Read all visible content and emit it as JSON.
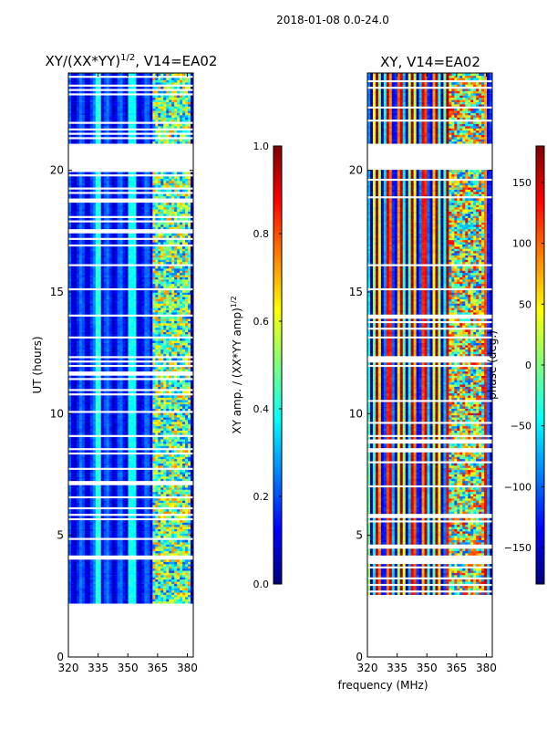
{
  "suptitle": "2018-01-08 0.0-24.0",
  "shared_xlabel": "frequency (MHz)",
  "colors": {
    "jet": [
      "#00007f",
      "#0000ff",
      "#007fff",
      "#00ffff",
      "#7fff7f",
      "#ffff00",
      "#ff7f00",
      "#ff0000",
      "#7f0000"
    ],
    "frame": "#000000",
    "background": "#ffffff"
  },
  "chart_data": [
    {
      "type": "heatmap",
      "title_main": "XY/(XX*YY)",
      "title_sup": "1/2",
      "title_rest": ", V14=EA02",
      "xlabel": "",
      "ylabel": "UT (hours)",
      "xlim": [
        320,
        383
      ],
      "ylim": [
        0,
        24
      ],
      "xticks": [
        320,
        335,
        350,
        365,
        380
      ],
      "yticks": [
        0,
        5,
        10,
        15,
        20
      ],
      "data_ut_range": [
        2.2,
        24.0
      ],
      "gaps_ut": [
        [
          3.95,
          4.15
        ],
        [
          5.75,
          5.85
        ],
        [
          12.2,
          12.3
        ],
        [
          13.05,
          13.1
        ],
        [
          20.1,
          20.2
        ],
        [
          21.05,
          20.1
        ]
      ],
      "colorbar": {
        "label_main": "XY amp. / (XX*YY amp)",
        "label_sup": "1/2",
        "range": [
          0.0,
          1.0
        ],
        "ticks": [
          0.0,
          0.2,
          0.4,
          0.6,
          0.8,
          1.0
        ],
        "tick_labels": [
          "0.0",
          "0.2",
          "0.4",
          "0.6",
          "0.8",
          "1.0"
        ]
      }
    },
    {
      "type": "heatmap",
      "title_main": "XY, V14=EA02",
      "title_sup": "",
      "title_rest": "",
      "xlabel": "frequency (MHz)",
      "ylabel": "",
      "xlim": [
        320,
        383
      ],
      "ylim": [
        0,
        24
      ],
      "xticks": [
        320,
        335,
        350,
        365,
        380
      ],
      "yticks": [
        0,
        5,
        10,
        15,
        20
      ],
      "data_ut_range": [
        2.2,
        24.0
      ],
      "gaps_ut": [
        [
          3.95,
          4.15
        ],
        [
          5.75,
          5.85
        ],
        [
          12.2,
          12.3
        ],
        [
          13.05,
          13.1
        ],
        [
          20.1,
          20.2
        ],
        [
          21.05,
          20.1
        ]
      ],
      "colorbar": {
        "label_main": "phase (deg.)",
        "label_sup": "",
        "range": [
          -180,
          180
        ],
        "ticks": [
          -150,
          -100,
          -50,
          0,
          50,
          100,
          150
        ],
        "tick_labels": [
          "−150",
          "−100",
          "−50",
          "0",
          "50",
          "100",
          "150"
        ]
      }
    }
  ]
}
